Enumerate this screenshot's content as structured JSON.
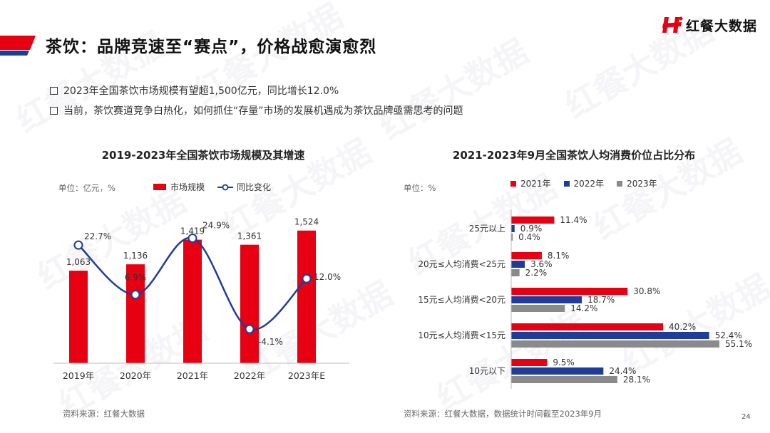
{
  "header": {
    "title": "茶饮：品牌竞速至“赛点”，价格战愈演愈烈",
    "logo_text": "红餐大数据",
    "accent_color": "#e60012",
    "accent_blue": "#1f3c99"
  },
  "bullets": [
    "2023年全国茶饮市场规模有望超1,500亿元，同比增长12.0%",
    "当前，茶饮赛道竞争白热化，如何抓住“存量”市场的发展机遇成为茶饮品牌亟需思考的问题"
  ],
  "watermark_text": "红餐大数据",
  "page_number": "24",
  "chart_data": [
    {
      "type": "bar+line",
      "title": "2019-2023年全国茶饮市场规模及其增速",
      "unit_label": "单位：亿元，%",
      "categories": [
        "2019年",
        "2020年",
        "2021年",
        "2022年",
        "2023年E"
      ],
      "series": [
        {
          "name": "市场规模",
          "type": "bar",
          "color": "#e60012",
          "values": [
            1063,
            1136,
            1419,
            1361,
            1524
          ],
          "labels": [
            "1,063",
            "1,136",
            "1,419",
            "1,361",
            "1,524"
          ]
        },
        {
          "name": "同比变化",
          "type": "line",
          "color": "#1f3c99",
          "values": [
            22.7,
            6.9,
            24.9,
            -4.1,
            12.0
          ],
          "labels": [
            "22.7%",
            "6.9%",
            "24.9%",
            "-4.1%",
            "12.0%"
          ]
        }
      ],
      "ylim_bar": [
        0,
        1800
      ],
      "ylim_line": [
        -15,
        35
      ],
      "source": "资料来源：红餐大数据"
    },
    {
      "type": "bar",
      "orientation": "horizontal",
      "title": "2021-2023年9月全国茶饮人均消费价位占比分布",
      "unit_label": "单位：%",
      "categories": [
        "25元以上",
        "20元≤人均消费<25元",
        "15元≤人均消费<20元",
        "10元≤人均消费<15元",
        "10元以下"
      ],
      "series": [
        {
          "name": "2021年",
          "color": "#e60012",
          "values": [
            11.4,
            8.1,
            30.8,
            40.2,
            9.5
          ]
        },
        {
          "name": "2022年",
          "color": "#1f3c99",
          "values": [
            0.9,
            3.6,
            18.7,
            52.4,
            24.4
          ]
        },
        {
          "name": "2023年",
          "color": "#8a8a8a",
          "values": [
            0.4,
            2.2,
            14.2,
            55.1,
            28.1
          ]
        }
      ],
      "xlim": [
        0,
        60
      ],
      "source": "资料来源：红餐大数据，数据统计时间截至2023年9月"
    }
  ]
}
